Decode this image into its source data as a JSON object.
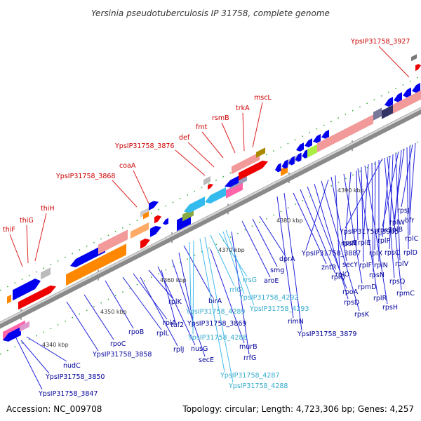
{
  "title": "Yersinia pseudotuberculosis IP 31758, complete genome",
  "footer": {
    "accession": "Accession: NC_009708",
    "summary": "Topology: circular; Length: 4,723,306 bp; Genes: 4,257"
  },
  "colors": {
    "background": "#ffffff",
    "backbone_dark": "#888888",
    "backbone_light": "#cccccc",
    "gene_blue": "#0000ee",
    "gene_red": "#ee0000",
    "rna_cyan": "#33bbee",
    "label_red": "#cc0000",
    "label_blue": "#000099",
    "label_cyan": "#33aacc",
    "ruler_green": "#228822"
  },
  "ticks": [
    "4340 kbp",
    "4350 kbp",
    "4360 kbp",
    "4370 kbp",
    "4380 kbp",
    "4390 kbp"
  ],
  "labels_top": [
    {
      "text": "thiF"
    },
    {
      "text": "thiG"
    },
    {
      "text": "thiH"
    },
    {
      "text": "YpsIP31758_3868"
    },
    {
      "text": "coaA"
    },
    {
      "text": "YpsIP31758_3876"
    },
    {
      "text": "def"
    },
    {
      "text": "fmt"
    },
    {
      "text": "rsmB"
    },
    {
      "text": "trkA"
    },
    {
      "text": "mscL"
    },
    {
      "text": "YpsIP31758_3927"
    }
  ],
  "labels_bottom": [
    {
      "text": "YpsIP31758_3847"
    },
    {
      "text": "YpsIP31758_3850"
    },
    {
      "text": "nudC"
    },
    {
      "text": "YpsIP31758_3858"
    },
    {
      "text": "rpoC"
    },
    {
      "text": "rpoB"
    },
    {
      "text": "rplL"
    },
    {
      "text": "rplJ"
    },
    {
      "text": "rplA"
    },
    {
      "text": "rplK"
    },
    {
      "text": "nusG"
    },
    {
      "text": "secE"
    },
    {
      "text": "tuf2"
    },
    {
      "text": "YpsIP31758_3869"
    },
    {
      "text": "birA"
    },
    {
      "text": "murB"
    },
    {
      "text": "rrfG"
    },
    {
      "text": "aroE"
    },
    {
      "text": "smg"
    },
    {
      "text": "dprA"
    },
    {
      "text": "rimN"
    },
    {
      "text": "YpsIP31758_3879"
    },
    {
      "text": "zntR"
    },
    {
      "text": "rplQ"
    },
    {
      "text": "rpoA"
    },
    {
      "text": "rpsD"
    },
    {
      "text": "rpsK"
    },
    {
      "text": "YpsIP31758_3887"
    },
    {
      "text": "secY"
    },
    {
      "text": "rplO"
    },
    {
      "text": "rpmD"
    },
    {
      "text": "rpsM"
    },
    {
      "text": "rpsE"
    },
    {
      "text": "rplR"
    },
    {
      "text": "rplF"
    },
    {
      "text": "rpsH"
    },
    {
      "text": "rplE"
    },
    {
      "text": "rpsN"
    },
    {
      "text": "rplX"
    },
    {
      "text": "rplN"
    },
    {
      "text": "YpsIP31758_3905"
    },
    {
      "text": "rpsQ"
    },
    {
      "text": "rpmC"
    },
    {
      "text": "rplP"
    },
    {
      "text": "rpsC"
    },
    {
      "text": "rplV"
    },
    {
      "text": "rpsS"
    },
    {
      "text": "rplB"
    },
    {
      "text": "rplW"
    },
    {
      "text": "rplD"
    },
    {
      "text": "rplC"
    },
    {
      "text": "rpsJ"
    },
    {
      "text": "bfr"
    }
  ],
  "labels_rna": [
    {
      "text": "YpsIP31758_4289"
    },
    {
      "text": "YpsIP31758_4286"
    },
    {
      "text": "YpsIP31758_4287"
    },
    {
      "text": "YpsIP31758_4288"
    },
    {
      "text": "rrlG"
    },
    {
      "text": "rrsG"
    },
    {
      "text": "YpsIP31758_4292"
    },
    {
      "text": "YpsIP31758_4293"
    }
  ]
}
